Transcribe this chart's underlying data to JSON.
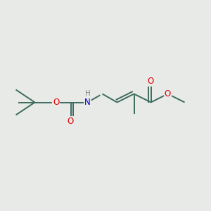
{
  "bg_color": "#e8eae8",
  "bond_color": "#3d6b5e",
  "bond_width": 1.4,
  "atom_colors": {
    "O": "#e00000",
    "N": "#0000cc",
    "H": "#888888",
    "C": "#3d6b5e"
  },
  "font_size_atom": 8.5,
  "figsize": [
    3.0,
    3.0
  ],
  "dpi": 100
}
